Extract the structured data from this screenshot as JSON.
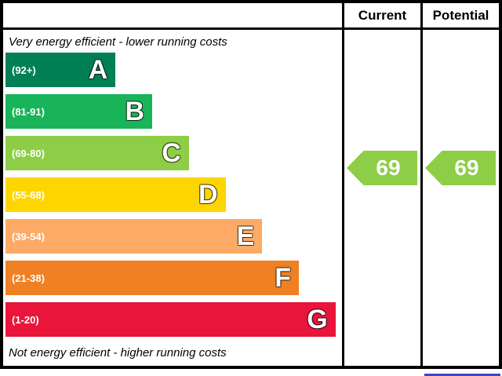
{
  "header": {
    "current": "Current",
    "potential": "Potential"
  },
  "captions": {
    "top": "Very energy efficient - lower running costs",
    "bottom": "Not energy efficient - higher running costs"
  },
  "bands": [
    {
      "letter": "A",
      "range": "(92+)",
      "color": "#008054",
      "width_pct": 33
    },
    {
      "letter": "B",
      "range": "(81-91)",
      "color": "#19b459",
      "width_pct": 44
    },
    {
      "letter": "C",
      "range": "(69-80)",
      "color": "#8dce46",
      "width_pct": 55
    },
    {
      "letter": "D",
      "range": "(55-68)",
      "color": "#ffd500",
      "width_pct": 66
    },
    {
      "letter": "E",
      "range": "(39-54)",
      "color": "#fcaa65",
      "width_pct": 77
    },
    {
      "letter": "F",
      "range": "(21-38)",
      "color": "#ef8023",
      "width_pct": 88
    },
    {
      "letter": "G",
      "range": "(1-20)",
      "color": "#e9153b",
      "width_pct": 99
    }
  ],
  "current": {
    "value": "69",
    "color": "#8dce46"
  },
  "potential": {
    "value": "69",
    "color": "#8dce46"
  },
  "chart_data": {
    "type": "bar",
    "categories": [
      "A",
      "B",
      "C",
      "D",
      "E",
      "F",
      "G"
    ],
    "band_ranges": [
      "92+",
      "81-91",
      "69-80",
      "55-68",
      "39-54",
      "21-38",
      "1-20"
    ],
    "band_colors": [
      "#008054",
      "#19b459",
      "#8dce46",
      "#ffd500",
      "#fcaa65",
      "#ef8023",
      "#e9153b"
    ],
    "relative_bar_widths_pct": [
      33,
      44,
      55,
      66,
      77,
      88,
      99
    ],
    "columns": [
      "Current",
      "Potential"
    ],
    "current": 69,
    "potential": 69,
    "current_band": "C",
    "potential_band": "C",
    "top_caption": "Very energy efficient - lower running costs",
    "bottom_caption": "Not energy efficient - higher running costs"
  }
}
